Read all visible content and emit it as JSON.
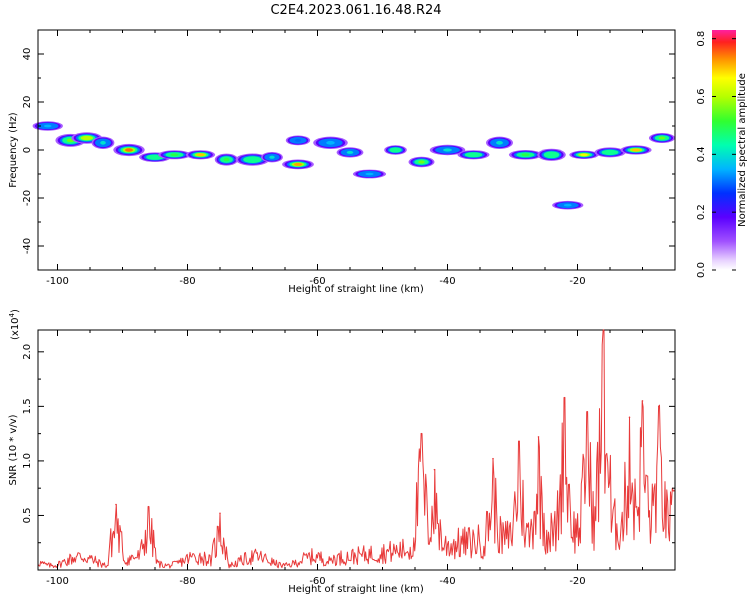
{
  "title": "C2E4.2023.061.16.48.R24",
  "colors": {
    "line": "#e83a3a",
    "axis": "#000000"
  },
  "chart_data": [
    {
      "type": "heatmap",
      "name": "spectrogram",
      "xlabel": "Height of straight line (km)",
      "ylabel": "Frequency (Hz)",
      "xlim": [
        -103,
        -5
      ],
      "ylim": [
        -50,
        50
      ],
      "x_ticks": [
        -100,
        -80,
        -60,
        -40,
        -20
      ],
      "y_ticks": [
        -40,
        -20,
        0,
        20,
        40
      ],
      "x_tick_labels": [
        "-100",
        "-80",
        "-60",
        "-40",
        "-20"
      ],
      "y_tick_labels": [
        "-40",
        "-20",
        "0",
        "20",
        "40"
      ],
      "colorbar": {
        "label": "Normalized spectral amplitude",
        "range": [
          0.0,
          0.83
        ],
        "ticks": [
          0.0,
          0.2,
          0.4,
          0.6,
          0.8
        ],
        "tick_labels": [
          "0.0",
          "0.2",
          "0.4",
          "0.6",
          "0.8"
        ]
      },
      "blobs": [
        {
          "x": -101.5,
          "y": 10,
          "amp": 0.35
        },
        {
          "x": -98,
          "y": 4,
          "amp": 0.55
        },
        {
          "x": -95.5,
          "y": 5,
          "amp": 0.6
        },
        {
          "x": -93,
          "y": 3,
          "amp": 0.4
        },
        {
          "x": -89,
          "y": 0,
          "amp": 0.75
        },
        {
          "x": -85,
          "y": -3,
          "amp": 0.45
        },
        {
          "x": -82,
          "y": -2,
          "amp": 0.5
        },
        {
          "x": -78,
          "y": -2,
          "amp": 0.7
        },
        {
          "x": -74,
          "y": -4,
          "amp": 0.5
        },
        {
          "x": -70,
          "y": -4,
          "amp": 0.45
        },
        {
          "x": -67,
          "y": -3,
          "amp": 0.4
        },
        {
          "x": -63,
          "y": -6,
          "amp": 0.72
        },
        {
          "x": -63,
          "y": 4,
          "amp": 0.3
        },
        {
          "x": -58,
          "y": 3,
          "amp": 0.35
        },
        {
          "x": -55,
          "y": -1,
          "amp": 0.4
        },
        {
          "x": -52,
          "y": -10,
          "amp": 0.35
        },
        {
          "x": -48,
          "y": 0,
          "amp": 0.45
        },
        {
          "x": -44,
          "y": -5,
          "amp": 0.55
        },
        {
          "x": -40,
          "y": 0,
          "amp": 0.4
        },
        {
          "x": -36,
          "y": -2,
          "amp": 0.45
        },
        {
          "x": -32,
          "y": 3,
          "amp": 0.4
        },
        {
          "x": -28,
          "y": -2,
          "amp": 0.5
        },
        {
          "x": -24,
          "y": -2,
          "amp": 0.45
        },
        {
          "x": -21.5,
          "y": -23,
          "amp": 0.35
        },
        {
          "x": -19,
          "y": -2,
          "amp": 0.65
        },
        {
          "x": -15,
          "y": -1,
          "amp": 0.45
        },
        {
          "x": -11,
          "y": 0,
          "amp": 0.7
        },
        {
          "x": -7,
          "y": 5,
          "amp": 0.55
        }
      ]
    },
    {
      "type": "line",
      "name": "snr",
      "xlabel": "Height of straight line (km)",
      "ylabel": "SNR (10 * v/v)",
      "y_scale_label": "(x10",
      "y_scale_exp": "4",
      "xlim": [
        -103,
        -5
      ],
      "ylim": [
        0,
        2.2
      ],
      "x_ticks": [
        -100,
        -80,
        -60,
        -40,
        -20
      ],
      "y_ticks": [
        0.5,
        1.0,
        1.5,
        2.0
      ],
      "x_tick_labels": [
        "-100",
        "-80",
        "-60",
        "-40",
        "-20"
      ],
      "y_tick_labels": [
        "0.5",
        "1.0",
        "1.5",
        "2.0"
      ],
      "peaks": [
        {
          "x": -91,
          "y": 0.6
        },
        {
          "x": -86,
          "y": 0.58
        },
        {
          "x": -75,
          "y": 0.52
        },
        {
          "x": -44,
          "y": 1.25
        },
        {
          "x": -42,
          "y": 0.92
        },
        {
          "x": -33,
          "y": 1.02
        },
        {
          "x": -29,
          "y": 1.18
        },
        {
          "x": -26,
          "y": 1.22
        },
        {
          "x": -22,
          "y": 1.58
        },
        {
          "x": -18.5,
          "y": 1.45
        },
        {
          "x": -16,
          "y": 2.2
        },
        {
          "x": -12,
          "y": 1.4
        },
        {
          "x": -10,
          "y": 1.55
        },
        {
          "x": -7.5,
          "y": 1.5
        }
      ]
    }
  ]
}
